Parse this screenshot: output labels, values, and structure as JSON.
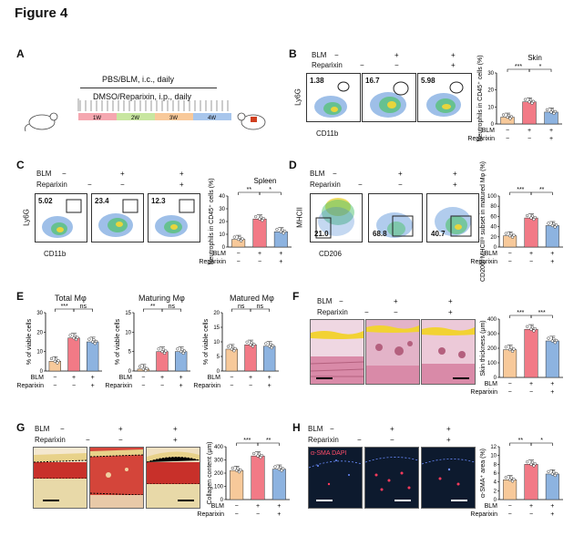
{
  "figure_title": "Figure 4",
  "colors": {
    "control": "#f7c99a",
    "blm": "#f27a86",
    "reparixin": "#8db3e0",
    "he_pink": "#e8b4c8",
    "sirius_red": "#c8302a",
    "if_dark": "#0d1a2e"
  },
  "panel_a": {
    "label": "A",
    "top_text": "PBS/BLM, i.c., daily",
    "bottom_text": "DMSO/Reparixin, i.p., daily",
    "weeks": [
      "1W",
      "2W",
      "3W",
      "4W"
    ],
    "mouse_icon": "mouse-icon",
    "skin_icon": "skin-icon"
  },
  "panel_b": {
    "label": "B",
    "row_blm": "BLM",
    "row_rep": "Reparixin",
    "col_signs_blm": [
      "−",
      "+",
      "+"
    ],
    "col_signs_rep": [
      "−",
      "−",
      "+"
    ],
    "percents": [
      "1.38",
      "16.7",
      "5.98"
    ],
    "ylabel": "Ly6G",
    "xlabel": "CD11b",
    "bar_title": "Skin",
    "bar_ylabel": "Neutrophils in CD45⁺ cells (%)",
    "sig": [
      "***",
      "*"
    ]
  },
  "panel_c": {
    "label": "C",
    "row_blm": "BLM",
    "row_rep": "Reparixin",
    "col_signs_blm": [
      "−",
      "+",
      "+"
    ],
    "col_signs_rep": [
      "−",
      "−",
      "+"
    ],
    "percents": [
      "5.02",
      "23.4",
      "12.3"
    ],
    "ylabel": "Ly6G",
    "xlabel": "CD11b",
    "bar_title": "Spleen",
    "bar_ylabel": "Neutrophils in CD45⁺ cells (%)",
    "sig": [
      "**",
      "*"
    ]
  },
  "panel_d": {
    "label": "D",
    "row_blm": "BLM",
    "row_rep": "Reparixin",
    "col_signs_blm": [
      "−",
      "+",
      "+"
    ],
    "col_signs_rep": [
      "−",
      "−",
      "+"
    ],
    "percents": [
      "21.0",
      "68.8",
      "40.7"
    ],
    "ylabel": "MHCII",
    "xlabel": "CD206",
    "bar_ylabel": "CD206ʰⁱMHCIIˡᵒ subset in matured Mφ (%)",
    "sig": [
      "***",
      "**"
    ]
  },
  "panel_e": {
    "label": "E",
    "titles": [
      "Total Mφ",
      "Maturing Mφ",
      "Matured Mφ"
    ],
    "ylabel": "% of viable cells",
    "sig": [
      [
        "***",
        "ns"
      ],
      [
        "**",
        "ns"
      ],
      [
        "ns",
        "ns"
      ]
    ]
  },
  "panel_f": {
    "label": "F",
    "row_blm": "BLM",
    "row_rep": "Reparixin",
    "col_signs_blm": [
      "−",
      "+",
      "+"
    ],
    "col_signs_rep": [
      "−",
      "−",
      "+"
    ],
    "bar_ylabel": "Skin thickness (μm)",
    "sig": [
      "***",
      "***"
    ]
  },
  "panel_g": {
    "label": "G",
    "row_blm": "BLM",
    "row_rep": "Reparixin",
    "col_signs_blm": [
      "−",
      "+",
      "+"
    ],
    "col_signs_rep": [
      "−",
      "−",
      "+"
    ],
    "bar_ylabel": "Collagen content (μm)",
    "sig": [
      "***",
      "**"
    ]
  },
  "panel_h": {
    "label": "H",
    "row_blm": "BLM",
    "row_rep": "Reparixin",
    "col_signs_blm": [
      "−",
      "+",
      "+"
    ],
    "col_signs_rep": [
      "−",
      "−",
      "+"
    ],
    "stain_text": "α-SMA DAPI",
    "bar_ylabel": "α-SMA⁺ area (%)",
    "sig": [
      "**",
      "*"
    ]
  },
  "bar_footer": {
    "blm": "BLM",
    "rep": "Reparixin",
    "blm_signs": [
      "−",
      "+",
      "+"
    ],
    "rep_signs": [
      "−",
      "−",
      "+"
    ]
  },
  "chart_data": [
    {
      "id": "B",
      "type": "bar",
      "categories": [
        "Ctrl",
        "BLM",
        "BLM+Reparixin"
      ],
      "values": [
        4,
        13,
        7
      ],
      "ylim": [
        0,
        30
      ],
      "yticks": [
        0,
        10,
        20,
        30
      ],
      "title": "Skin"
    },
    {
      "id": "C",
      "type": "bar",
      "categories": [
        "Ctrl",
        "BLM",
        "BLM+Reparixin"
      ],
      "values": [
        6,
        22,
        12
      ],
      "ylim": [
        0,
        40
      ],
      "yticks": [
        0,
        10,
        20,
        30,
        40
      ],
      "title": "Spleen"
    },
    {
      "id": "D",
      "type": "bar",
      "categories": [
        "Ctrl",
        "BLM",
        "BLM+Reparixin"
      ],
      "values": [
        22,
        57,
        42
      ],
      "ylim": [
        0,
        100
      ],
      "yticks": [
        0,
        20,
        40,
        60,
        80,
        100
      ]
    },
    {
      "id": "E1",
      "type": "bar",
      "categories": [
        "Ctrl",
        "BLM",
        "BLM+Reparixin"
      ],
      "values": [
        5,
        17,
        15
      ],
      "ylim": [
        0,
        30
      ],
      "yticks": [
        0,
        10,
        20,
        30
      ],
      "title": "Total Mφ"
    },
    {
      "id": "E2",
      "type": "bar",
      "categories": [
        "Ctrl",
        "BLM",
        "BLM+Reparixin"
      ],
      "values": [
        0.5,
        5,
        5
      ],
      "ylim": [
        0,
        15
      ],
      "yticks": [
        0,
        5,
        10,
        15
      ],
      "title": "Maturing Mφ"
    },
    {
      "id": "E3",
      "type": "bar",
      "categories": [
        "Ctrl",
        "BLM",
        "BLM+Reparixin"
      ],
      "values": [
        7.5,
        9,
        8.5
      ],
      "ylim": [
        0,
        20
      ],
      "yticks": [
        0,
        5,
        10,
        15,
        20
      ],
      "title": "Matured Mφ"
    },
    {
      "id": "F",
      "type": "bar",
      "categories": [
        "Ctrl",
        "BLM",
        "BLM+Reparixin"
      ],
      "values": [
        190,
        330,
        250
      ],
      "ylim": [
        0,
        400
      ],
      "yticks": [
        0,
        100,
        200,
        300,
        400
      ]
    },
    {
      "id": "G",
      "type": "bar",
      "categories": [
        "Ctrl",
        "BLM",
        "BLM+Reparixin"
      ],
      "values": [
        220,
        330,
        230
      ],
      "ylim": [
        0,
        400
      ],
      "yticks": [
        0,
        100,
        200,
        300,
        400
      ]
    },
    {
      "id": "H",
      "type": "bar",
      "categories": [
        "Ctrl",
        "BLM",
        "BLM+Reparixin"
      ],
      "values": [
        4.5,
        8,
        5.8
      ],
      "ylim": [
        0,
        12
      ],
      "yticks": [
        0,
        2,
        4,
        6,
        8,
        10,
        12
      ]
    }
  ]
}
